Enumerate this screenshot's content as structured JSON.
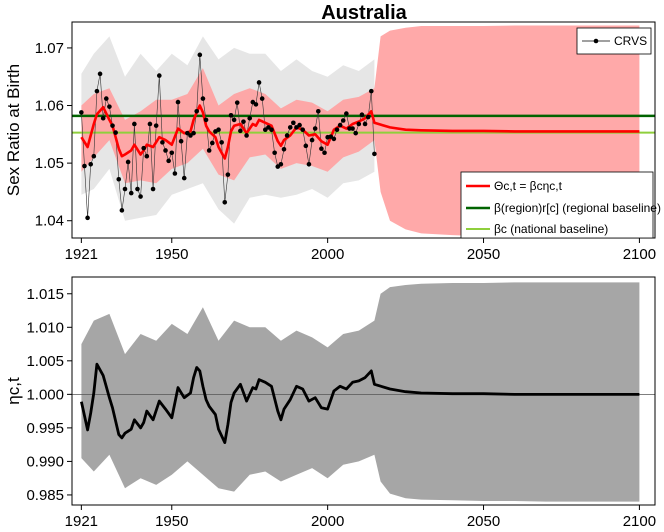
{
  "chart_data": [
    {
      "type": "line",
      "title": "Australia",
      "ylabel": "Sex Ratio at Birth",
      "xlim": [
        1918,
        2105
      ],
      "ylim": [
        1.037,
        1.0745
      ],
      "xticks": [
        1921,
        1950,
        2000,
        2050,
        2100
      ],
      "yticks": [
        1.04,
        1.05,
        1.06,
        1.07
      ],
      "grid": false,
      "colors": {
        "band_outer": "#e6e6e6",
        "band_inner": "#f4a6a6",
        "band_projection": "#ffa0a0",
        "line": "#ff0000",
        "regional": "#006400",
        "national": "#8fcf3c",
        "points": "#000000"
      },
      "hlines": [
        {
          "name": "regional",
          "y": 1.0582
        },
        {
          "name": "national",
          "y": 1.0553
        }
      ],
      "legend_top": {
        "placement": "top-right",
        "entries": [
          "CRVS"
        ]
      },
      "legend_bottom": {
        "placement": "bottom-right",
        "entries": [
          "Θc,t = βcηc,t",
          "β(region)r[c] (regional baseline)",
          "βc (national baseline)"
        ]
      },
      "series": [
        {
          "name": "CRVS",
          "kind": "points",
          "x": [
            1921,
            1922,
            1923,
            1924,
            1925,
            1926,
            1927,
            1928,
            1929,
            1930,
            1931,
            1932,
            1933,
            1934,
            1935,
            1936,
            1937,
            1938,
            1939,
            1940,
            1941,
            1942,
            1943,
            1944,
            1945,
            1946,
            1947,
            1948,
            1949,
            1950,
            1951,
            1952,
            1953,
            1954,
            1955,
            1956,
            1957,
            1958,
            1959,
            1960,
            1961,
            1962,
            1963,
            1964,
            1965,
            1966,
            1967,
            1968,
            1969,
            1970,
            1971,
            1972,
            1973,
            1974,
            1975,
            1976,
            1977,
            1978,
            1979,
            1980,
            1981,
            1982,
            1983,
            1984,
            1985,
            1986,
            1987,
            1988,
            1989,
            1990,
            1991,
            1992,
            1993,
            1994,
            1995,
            1996,
            1997,
            1998,
            1999,
            2000,
            2001,
            2002,
            2003,
            2004,
            2005,
            2006,
            2007,
            2008,
            2009,
            2010,
            2011,
            2012,
            2013,
            2014,
            2015
          ],
          "y": [
            1.0588,
            1.0495,
            1.0405,
            1.0498,
            1.0512,
            1.0625,
            1.0655,
            1.0578,
            1.0612,
            1.0598,
            1.0565,
            1.0553,
            1.0472,
            1.0418,
            1.0455,
            1.0502,
            1.0448,
            1.0568,
            1.0455,
            1.0442,
            1.0526,
            1.0512,
            1.0568,
            1.0455,
            1.0565,
            1.0652,
            1.0536,
            1.0522,
            1.0504,
            1.0518,
            1.0482,
            1.0606,
            1.0538,
            1.0474,
            1.0552,
            1.0548,
            1.0552,
            1.059,
            1.0688,
            1.0612,
            1.0575,
            1.0522,
            1.0535,
            1.0555,
            1.0558,
            1.0536,
            1.0432,
            1.048,
            1.0583,
            1.0575,
            1.0605,
            1.0556,
            1.0572,
            1.0548,
            1.0578,
            1.0606,
            1.0602,
            1.064,
            1.0612,
            1.0558,
            1.0562,
            1.0558,
            1.0518,
            1.0494,
            1.0498,
            1.0524,
            1.0548,
            1.0562,
            1.057,
            1.0562,
            1.0566,
            1.0558,
            1.053,
            1.0498,
            1.054,
            1.056,
            1.059,
            1.0525,
            1.0518,
            1.0545,
            1.0546,
            1.0542,
            1.0558,
            1.0566,
            1.0574,
            1.0586,
            1.056,
            1.056,
            1.0552,
            1.0568,
            1.0584,
            1.0568,
            1.058,
            1.0625,
            1.0516
          ]
        },
        {
          "name": "Θc,t = βcηc,t",
          "kind": "line",
          "x": [
            1921,
            1923,
            1924,
            1925,
            1926,
            1928,
            1930,
            1931,
            1933,
            1934,
            1935,
            1937,
            1938,
            1940,
            1941,
            1942,
            1944,
            1946,
            1948,
            1950,
            1952,
            1954,
            1956,
            1957,
            1958,
            1959,
            1960,
            1961,
            1962,
            1964,
            1965,
            1967,
            1968,
            1969,
            1970,
            1972,
            1974,
            1976,
            1977,
            1978,
            1980,
            1982,
            1984,
            1985,
            1986,
            1988,
            1990,
            1992,
            1994,
            1996,
            1998,
            2000,
            2002,
            2004,
            2006,
            2008,
            2010,
            2012,
            2014,
            2015,
            2020,
            2025,
            2030,
            2040,
            2050,
            2060,
            2070,
            2080,
            2090,
            2100
          ],
          "y": [
            1.0545,
            1.0528,
            1.0548,
            1.0568,
            1.0585,
            1.0597,
            1.0575,
            1.0565,
            1.0525,
            1.0512,
            1.0515,
            1.0522,
            1.0532,
            1.0515,
            1.0522,
            1.0532,
            1.0528,
            1.0545,
            1.054,
            1.0532,
            1.056,
            1.0552,
            1.0555,
            1.0575,
            1.0588,
            1.06,
            1.0588,
            1.0565,
            1.0555,
            1.0545,
            1.0528,
            1.0508,
            1.0528,
            1.0555,
            1.0565,
            1.0568,
            1.0552,
            1.0568,
            1.0565,
            1.0575,
            1.057,
            1.0565,
            1.0538,
            1.053,
            1.054,
            1.0548,
            1.0562,
            1.0558,
            1.0548,
            1.055,
            1.0538,
            1.0532,
            1.0558,
            1.0565,
            1.056,
            1.0568,
            1.0572,
            1.0578,
            1.059,
            1.057,
            1.0562,
            1.0558,
            1.0557,
            1.0556,
            1.0556,
            1.0555,
            1.0555,
            1.0555,
            1.0555,
            1.0555
          ]
        },
        {
          "name": "band_inner",
          "kind": "band",
          "x": [
            1921,
            1925,
            1930,
            1935,
            1940,
            1945,
            1950,
            1955,
            1960,
            1965,
            1970,
            1975,
            1980,
            1985,
            1990,
            1995,
            2000,
            2005,
            2010,
            2015,
            2017,
            2020,
            2025,
            2030,
            2040,
            2050,
            2060,
            2070,
            2080,
            2090,
            2100
          ],
          "lower": [
            1.0485,
            1.051,
            1.054,
            1.0465,
            1.047,
            1.0465,
            1.049,
            1.05,
            1.0525,
            1.048,
            1.047,
            1.051,
            1.0515,
            1.049,
            1.05,
            1.0495,
            1.0485,
            1.051,
            1.052,
            1.054,
            1.045,
            1.04,
            1.0385,
            1.0378,
            1.0375,
            1.0373,
            1.0373,
            1.0372,
            1.0372,
            1.0372,
            1.0372
          ],
          "upper": [
            1.06,
            1.062,
            1.063,
            1.0575,
            1.059,
            1.061,
            1.061,
            1.062,
            1.0665,
            1.06,
            1.062,
            1.063,
            1.062,
            1.0595,
            1.061,
            1.0605,
            1.059,
            1.061,
            1.0615,
            1.063,
            1.072,
            1.073,
            1.0735,
            1.0738,
            1.0738,
            1.0738,
            1.0739,
            1.0739,
            1.0739,
            1.0739,
            1.0739
          ]
        },
        {
          "name": "band_outer",
          "kind": "band",
          "x": [
            1921,
            1925,
            1930,
            1935,
            1940,
            1945,
            1950,
            1955,
            1960,
            1965,
            1970,
            1975,
            1980,
            1985,
            1990,
            1995,
            2000,
            2005,
            2010,
            2015
          ],
          "lower": [
            1.0445,
            1.0455,
            1.049,
            1.04,
            1.0405,
            1.041,
            1.0445,
            1.0455,
            1.0465,
            1.042,
            1.0395,
            1.044,
            1.0445,
            1.044,
            1.0445,
            1.0455,
            1.044,
            1.0465,
            1.047,
            1.0485
          ],
          "upper": [
            1.0655,
            1.069,
            1.072,
            1.065,
            1.069,
            1.066,
            1.069,
            1.067,
            1.072,
            1.068,
            1.07,
            1.069,
            1.069,
            1.066,
            1.068,
            1.066,
            1.065,
            1.067,
            1.066,
            1.068
          ]
        }
      ]
    },
    {
      "type": "line",
      "ylabel": "ηc,t",
      "xlim": [
        1918,
        2105
      ],
      "ylim": [
        0.9835,
        1.0175
      ],
      "xticks": [
        1921,
        1950,
        2000,
        2050,
        2100
      ],
      "yticks": [
        0.985,
        0.99,
        0.995,
        1.0,
        1.005,
        1.01,
        1.015
      ],
      "ytick_labels": [
        "0.985",
        "0.990",
        "0.995",
        "1.000",
        "1.005",
        "1.010",
        "1.015"
      ],
      "grid": false,
      "colors": {
        "band": "#a6a6a6",
        "line": "#000000",
        "reference": "#555555"
      },
      "hlines": [
        {
          "name": "reference",
          "y": 1.0
        }
      ],
      "series": [
        {
          "name": "eta",
          "kind": "line",
          "x": [
            1921,
            1923,
            1924,
            1925,
            1926,
            1928,
            1930,
            1931,
            1933,
            1934,
            1935,
            1937,
            1938,
            1940,
            1941,
            1942,
            1944,
            1946,
            1948,
            1950,
            1952,
            1954,
            1956,
            1957,
            1958,
            1959,
            1960,
            1961,
            1962,
            1964,
            1965,
            1967,
            1968,
            1969,
            1970,
            1972,
            1974,
            1976,
            1977,
            1978,
            1980,
            1982,
            1984,
            1985,
            1986,
            1988,
            1990,
            1992,
            1994,
            1996,
            1998,
            2000,
            2002,
            2004,
            2006,
            2008,
            2010,
            2012,
            2014,
            2015,
            2020,
            2025,
            2030,
            2040,
            2050,
            2060,
            2070,
            2080,
            2090,
            2100
          ],
          "y": [
            0.9989,
            0.9947,
            0.9972,
            1.0002,
            1.0045,
            1.0028,
            0.9995,
            0.998,
            0.994,
            0.9935,
            0.9942,
            0.9948,
            0.9962,
            0.995,
            0.9958,
            0.9975,
            0.9962,
            0.999,
            0.9978,
            0.9965,
            1.001,
            0.9995,
            1.0002,
            1.0025,
            1.004,
            1.0035,
            1.0012,
            0.9992,
            0.9982,
            0.997,
            0.9948,
            0.9928,
            0.9955,
            0.9988,
            1.0002,
            1.0015,
            0.999,
            1.001,
            1.0008,
            1.0022,
            1.0018,
            1.0012,
            0.9975,
            0.9962,
            0.9978,
            0.9992,
            1.0012,
            1.0008,
            0.999,
            0.9995,
            0.998,
            0.9978,
            1.0005,
            1.0012,
            1.0008,
            1.0018,
            1.002,
            1.0025,
            1.0035,
            1.0015,
            1.0008,
            1.0004,
            1.0002,
            1.0001,
            1.0001,
            1.0,
            1.0,
            1.0,
            1.0,
            1.0
          ]
        },
        {
          "name": "band",
          "kind": "band",
          "x": [
            1921,
            1925,
            1930,
            1935,
            1940,
            1945,
            1950,
            1955,
            1960,
            1965,
            1970,
            1975,
            1980,
            1985,
            1990,
            1995,
            2000,
            2005,
            2010,
            2015,
            2017,
            2020,
            2025,
            2030,
            2040,
            2050,
            2060,
            2070,
            2080,
            2090,
            2100
          ],
          "lower": [
            0.9905,
            0.9885,
            0.991,
            0.986,
            0.9875,
            0.9865,
            0.988,
            0.99,
            0.988,
            0.986,
            0.9855,
            0.988,
            0.9885,
            0.987,
            0.988,
            0.989,
            0.9875,
            0.9895,
            0.99,
            0.991,
            0.987,
            0.9852,
            0.9845,
            0.9843,
            0.9842,
            0.9841,
            0.9841,
            0.984,
            0.984,
            0.984,
            0.984
          ],
          "upper": [
            1.0075,
            1.011,
            1.012,
            1.006,
            1.009,
            1.008,
            1.0105,
            1.009,
            1.013,
            1.008,
            1.011,
            1.01,
            1.01,
            1.008,
            1.0095,
            1.0085,
            1.007,
            1.009,
            1.0095,
            1.011,
            1.015,
            1.016,
            1.0163,
            1.0165,
            1.0166,
            1.0166,
            1.0167,
            1.0167,
            1.0167,
            1.0167,
            1.0167
          ]
        }
      ]
    }
  ]
}
